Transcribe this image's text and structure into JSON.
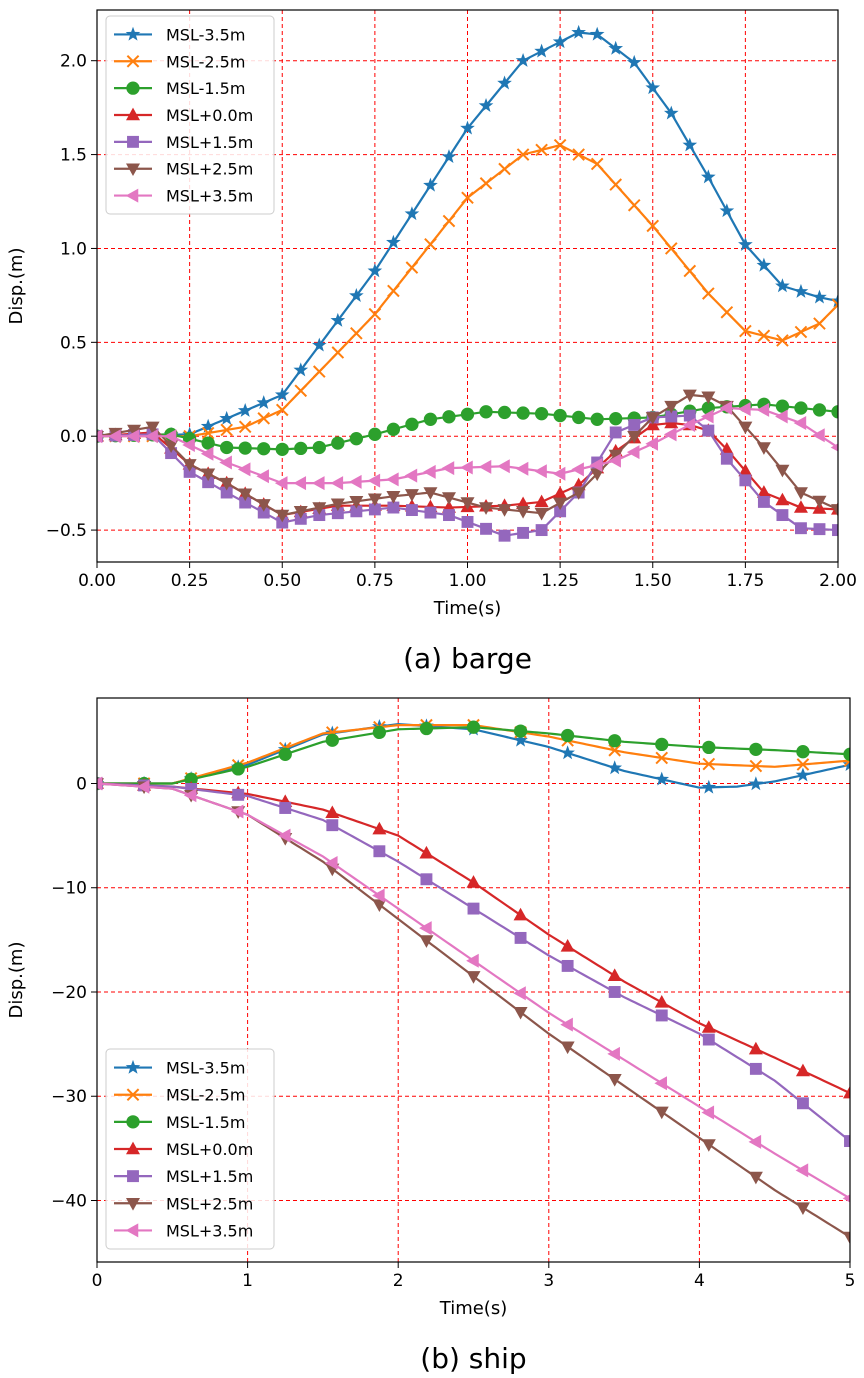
{
  "chart_data": [
    {
      "type": "line",
      "caption": "(a) barge",
      "xlabel": "Time(s)",
      "ylabel": "Disp.(m)",
      "xlim": [
        0,
        2.0
      ],
      "ylim": [
        -0.67,
        2.27
      ],
      "xticks": [
        0,
        0.25,
        0.5,
        0.75,
        1.0,
        1.25,
        1.5,
        1.75,
        2.0
      ],
      "xtick_labels": [
        "0.00",
        "0.25",
        "0.50",
        "0.75",
        "1.00",
        "1.25",
        "1.50",
        "1.75",
        "2.00"
      ],
      "yticks": [
        -0.5,
        0,
        0.5,
        1.0,
        1.5,
        2.0
      ],
      "ytick_labels": [
        "−0.5",
        "0.0",
        "0.5",
        "1.0",
        "1.5",
        "2.0"
      ],
      "grid": true,
      "legend_position": "upper-left",
      "series": [
        {
          "name": "MSL-3.5m",
          "color": "#1f77b4",
          "marker": "star",
          "x": [
            0,
            0.25,
            0.5,
            0.75,
            1.0,
            1.15,
            1.3,
            1.35,
            1.45,
            1.55,
            1.65,
            1.75,
            1.85,
            1.95,
            2.0
          ],
          "y": [
            0,
            0.01,
            0.22,
            0.88,
            1.64,
            2.0,
            2.15,
            2.14,
            1.99,
            1.72,
            1.38,
            1.02,
            0.8,
            0.74,
            0.72
          ]
        },
        {
          "name": "MSL-2.5m",
          "color": "#ff7f0e",
          "marker": "x",
          "x": [
            0,
            0.25,
            0.4,
            0.5,
            0.75,
            1.0,
            1.15,
            1.25,
            1.35,
            1.5,
            1.65,
            1.75,
            1.85,
            1.95,
            2.0
          ],
          "y": [
            0,
            0.0,
            0.05,
            0.14,
            0.65,
            1.27,
            1.5,
            1.55,
            1.45,
            1.12,
            0.76,
            0.56,
            0.51,
            0.6,
            0.7
          ]
        },
        {
          "name": "MSL-1.5m",
          "color": "#2ca02c",
          "marker": "circle",
          "x": [
            0,
            0.2,
            0.35,
            0.5,
            0.6,
            0.75,
            0.9,
            1.05,
            1.2,
            1.35,
            1.5,
            1.65,
            1.8,
            1.9,
            2.0
          ],
          "y": [
            0,
            0.01,
            -0.06,
            -0.07,
            -0.06,
            0.01,
            0.09,
            0.13,
            0.12,
            0.09,
            0.1,
            0.15,
            0.17,
            0.15,
            0.13
          ]
        },
        {
          "name": "MSL+0.0m",
          "color": "#d62728",
          "marker": "triangle-up",
          "x": [
            0,
            0.15,
            0.25,
            0.35,
            0.5,
            0.65,
            0.8,
            0.95,
            1.1,
            1.2,
            1.3,
            1.4,
            1.5,
            1.55,
            1.6,
            1.65,
            1.7,
            1.8,
            1.9,
            2.0
          ],
          "y": [
            0,
            0.02,
            -0.15,
            -0.25,
            -0.42,
            -0.37,
            -0.37,
            -0.38,
            -0.37,
            -0.35,
            -0.26,
            -0.08,
            0.06,
            0.07,
            0.06,
            0.03,
            -0.07,
            -0.3,
            -0.38,
            -0.39
          ]
        },
        {
          "name": "MSL+1.5m",
          "color": "#9467bd",
          "marker": "square",
          "x": [
            0,
            0.15,
            0.25,
            0.35,
            0.5,
            0.6,
            0.8,
            0.95,
            1.1,
            1.2,
            1.3,
            1.4,
            1.5,
            1.6,
            1.65,
            1.7,
            1.8,
            1.9,
            2.0
          ],
          "y": [
            0,
            0.01,
            -0.19,
            -0.3,
            -0.46,
            -0.42,
            -0.38,
            -0.42,
            -0.53,
            -0.5,
            -0.3,
            0.02,
            0.1,
            0.11,
            0.03,
            -0.12,
            -0.35,
            -0.49,
            -0.5
          ]
        },
        {
          "name": "MSL+2.5m",
          "color": "#8c564b",
          "marker": "triangle-down",
          "x": [
            0,
            0.15,
            0.25,
            0.35,
            0.5,
            0.65,
            0.8,
            0.9,
            1.05,
            1.2,
            1.3,
            1.4,
            1.5,
            1.6,
            1.65,
            1.7,
            1.8,
            1.9,
            2.0
          ],
          "y": [
            0,
            0.05,
            -0.15,
            -0.25,
            -0.42,
            -0.36,
            -0.32,
            -0.3,
            -0.38,
            -0.41,
            -0.3,
            -0.1,
            0.1,
            0.22,
            0.21,
            0.16,
            -0.06,
            -0.3,
            -0.39
          ]
        },
        {
          "name": "MSL+3.5m",
          "color": "#e377c2",
          "marker": "triangle-left",
          "x": [
            0,
            0.2,
            0.35,
            0.5,
            0.65,
            0.8,
            0.95,
            1.1,
            1.25,
            1.4,
            1.5,
            1.6,
            1.7,
            1.8,
            1.9,
            2.0
          ],
          "y": [
            0,
            0.0,
            -0.14,
            -0.25,
            -0.25,
            -0.23,
            -0.17,
            -0.16,
            -0.2,
            -0.13,
            -0.04,
            0.06,
            0.15,
            0.14,
            0.07,
            -0.06
          ]
        }
      ]
    },
    {
      "type": "line",
      "caption": "(b) ship",
      "xlabel": "Time(s)",
      "ylabel": "Disp.(m)",
      "xlim": [
        0,
        5
      ],
      "ylim": [
        -45.9,
        8.2
      ],
      "xticks": [
        0,
        1,
        2,
        3,
        4,
        5
      ],
      "xtick_labels": [
        "0",
        "1",
        "2",
        "3",
        "4",
        "5"
      ],
      "yticks": [
        -40,
        -30,
        -20,
        -10,
        0
      ],
      "ytick_labels": [
        "−40",
        "−30",
        "−20",
        "−10",
        "0"
      ],
      "grid": true,
      "legend_position": "lower-left",
      "series": [
        {
          "name": "MSL-3.5m",
          "color": "#1f77b4",
          "marker": "star",
          "x": [
            0,
            0.5,
            1.0,
            1.5,
            2.0,
            2.5,
            3.0,
            3.5,
            4.0,
            4.25,
            4.5,
            5.0
          ],
          "y": [
            0,
            0,
            1.8,
            4.7,
            5.7,
            5.2,
            3.5,
            1.2,
            -0.4,
            -0.3,
            0.2,
            1.8
          ]
        },
        {
          "name": "MSL-2.5m",
          "color": "#ff7f0e",
          "marker": "x",
          "x": [
            0,
            0.5,
            1.0,
            1.5,
            2.0,
            2.5,
            3.0,
            3.5,
            4.0,
            4.5,
            5.0
          ],
          "y": [
            0,
            0,
            2.0,
            4.8,
            5.6,
            5.6,
            4.5,
            3.0,
            1.9,
            1.6,
            2.2
          ]
        },
        {
          "name": "MSL-1.5m",
          "color": "#2ca02c",
          "marker": "circle",
          "x": [
            0,
            0.5,
            1.0,
            1.5,
            2.0,
            2.5,
            3.0,
            3.5,
            4.0,
            4.5,
            5.0
          ],
          "y": [
            0,
            0,
            1.6,
            4.0,
            5.2,
            5.4,
            4.8,
            4.0,
            3.5,
            3.2,
            2.8
          ]
        },
        {
          "name": "MSL+0.0m",
          "color": "#d62728",
          "marker": "triangle-up",
          "x": [
            0,
            0.5,
            1.0,
            1.5,
            2.0,
            2.5,
            3.0,
            3.5,
            4.0,
            4.5,
            5.0
          ],
          "y": [
            0,
            -0.3,
            -1.0,
            -2.5,
            -5.0,
            -9.5,
            -14.5,
            -19.0,
            -23.0,
            -26.3,
            -29.7
          ]
        },
        {
          "name": "MSL+1.5m",
          "color": "#9467bd",
          "marker": "square",
          "x": [
            0,
            0.5,
            1.0,
            1.5,
            2.0,
            2.5,
            3.0,
            3.5,
            4.0,
            4.5,
            5.0
          ],
          "y": [
            0,
            -0.3,
            -1.2,
            -3.5,
            -7.5,
            -12.0,
            -16.5,
            -20.5,
            -24.0,
            -28.5,
            -34.3
          ]
        },
        {
          "name": "MSL+2.5m",
          "color": "#8c564b",
          "marker": "triangle-down",
          "x": [
            0,
            0.5,
            1.0,
            1.5,
            2.0,
            2.5,
            3.0,
            3.5,
            4.0,
            4.5,
            5.0
          ],
          "y": [
            0,
            -0.5,
            -3.0,
            -7.5,
            -13.0,
            -18.5,
            -24.0,
            -29.0,
            -34.0,
            -39.0,
            -43.5
          ]
        },
        {
          "name": "MSL+3.5m",
          "color": "#e377c2",
          "marker": "triangle-left",
          "x": [
            0,
            0.5,
            1.0,
            1.5,
            2.0,
            2.5,
            3.0,
            3.5,
            4.0,
            4.5,
            5.0
          ],
          "y": [
            0,
            -0.5,
            -3.0,
            -7.0,
            -12.0,
            -17.0,
            -22.0,
            -26.5,
            -31.0,
            -35.5,
            -39.8
          ]
        }
      ]
    }
  ]
}
